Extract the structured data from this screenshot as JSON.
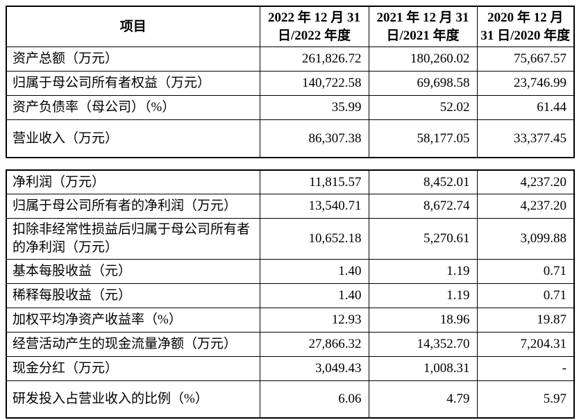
{
  "table1": {
    "header": [
      "项目",
      "2022 年 12 月 31 日/2022 年度",
      "2021 年 12 月 31 日/2021 年度",
      "2020 年 12 月 31 日/2020 年度"
    ],
    "rows": [
      {
        "label": "资产总额（万元）",
        "values": [
          "261,826.72",
          "180,260.02",
          "75,667.57"
        ]
      },
      {
        "label": "归属于母公司所有者权益（万元）",
        "values": [
          "140,722.58",
          "69,698.58",
          "23,746.99"
        ]
      },
      {
        "label": "资产负债率（母公司）（%）",
        "values": [
          "35.99",
          "52.02",
          "61.44"
        ]
      },
      {
        "label": "营业收入（万元）",
        "values": [
          "86,307.38",
          "58,177.05",
          "33,377.45"
        ]
      }
    ]
  },
  "table2": {
    "rows": [
      {
        "label": "净利润（万元）",
        "values": [
          "11,815.57",
          "8,452.01",
          "4,237.20"
        ]
      },
      {
        "label": "归属于母公司所有者的净利润（万元）",
        "values": [
          "13,540.71",
          "8,672.74",
          "4,237.20"
        ]
      },
      {
        "label": "扣除非经常性损益后归属于母公司所有者的净利润（万元）",
        "values": [
          "10,652.18",
          "5,270.61",
          "3,099.88"
        ]
      },
      {
        "label": "基本每股收益（元）",
        "values": [
          "1.40",
          "1.19",
          "0.71"
        ]
      },
      {
        "label": "稀释每股收益（元）",
        "values": [
          "1.40",
          "1.19",
          "0.71"
        ]
      },
      {
        "label": "加权平均净资产收益率（%）",
        "values": [
          "12.93",
          "18.96",
          "19.87"
        ]
      },
      {
        "label": "经营活动产生的现金流量净额（万元）",
        "values": [
          "27,866.32",
          "14,352.70",
          "7,204.31"
        ]
      },
      {
        "label": "现金分红（万元）",
        "values": [
          "3,049.43",
          "1,008.31",
          "-"
        ]
      },
      {
        "label": "研发投入占营业收入的比例（%）",
        "values": [
          "6.06",
          "4.79",
          "5.97"
        ]
      }
    ]
  }
}
